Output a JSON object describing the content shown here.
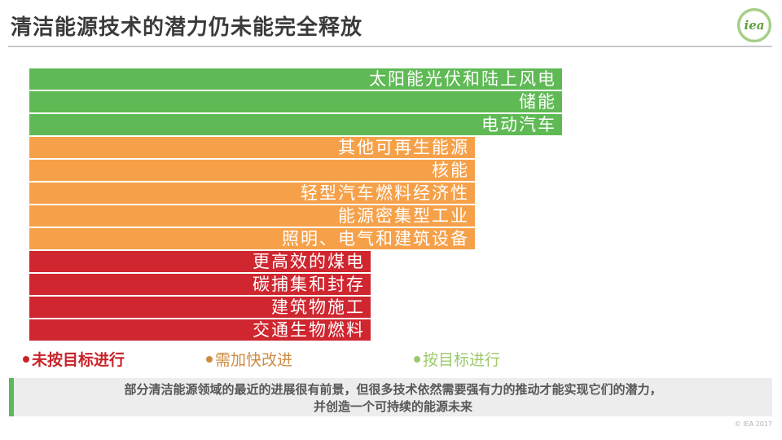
{
  "slide": {
    "title": "清洁能源技术的潜力仍未能完全释放",
    "logo_text": "iea",
    "copyright": "© IEA 2017"
  },
  "chart_data": {
    "type": "bar",
    "orientation": "horizontal",
    "title": "清洁能源技术的潜力仍未能完全释放",
    "xlabel": "",
    "ylabel": "",
    "legend_position": "bottom",
    "grid": false,
    "categories": [
      "太阳能光伏和陆上风电",
      "储能",
      "电动汽车",
      "其他可再生能源",
      "核能",
      "轻型汽车燃料经济性",
      "能源密集型工业",
      "照明、电气和建筑设备",
      "更高效的煤电",
      "碳捕集和封存",
      "建筑物施工",
      "交通生物燃料"
    ],
    "values": [
      654,
      654,
      654,
      547,
      547,
      547,
      547,
      547,
      419,
      419,
      419,
      419
    ],
    "statuses": [
      "on_track",
      "on_track",
      "on_track",
      "needs_improvement",
      "needs_improvement",
      "needs_improvement",
      "needs_improvement",
      "needs_improvement",
      "off_track",
      "off_track",
      "off_track",
      "off_track"
    ],
    "status_colors": {
      "on_track": "#5fba55",
      "needs_improvement": "#f6a14a",
      "off_track": "#cf262f"
    },
    "bar_label_color": "#ffffff"
  },
  "legend": {
    "items": [
      {
        "label": "未按目标进行",
        "status": "off_track",
        "color": "#c9232b"
      },
      {
        "label": "需加快改进",
        "status": "needs_improvement",
        "color": "#cd8b41"
      },
      {
        "label": "按目标进行",
        "status": "on_track",
        "color": "#9cc96c"
      }
    ]
  },
  "footer": {
    "note_line1": "部分清洁能源领域的最近的进展很有前景，但很多技术依然需要强有力的推动才能实现它们的潜力，",
    "note_line2": "并创造一个可持续的能源未来",
    "accent_color": "#5cb85c",
    "background_color": "#ededed"
  }
}
